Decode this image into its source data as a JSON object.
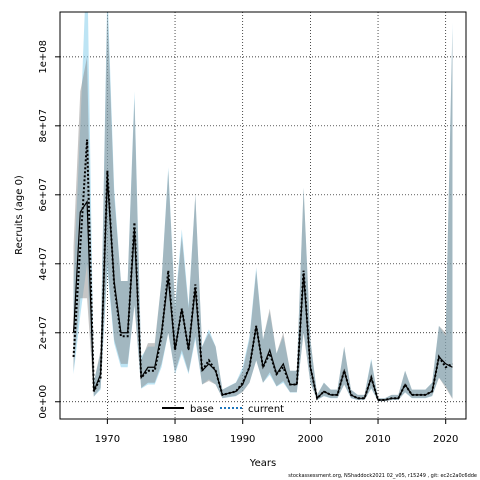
{
  "chart_data": {
    "type": "line",
    "xlabel": "Years",
    "ylabel": "Recruits (age 0)",
    "xlim": [
      1963,
      2023
    ],
    "ylim": [
      -5000000,
      113000000
    ],
    "x_ticks": [
      1970,
      1980,
      1990,
      2000,
      2010,
      2020
    ],
    "x_tick_labels": [
      "1970",
      "1980",
      "1990",
      "2000",
      "2010",
      "2020"
    ],
    "y_ticks": [
      0,
      20000000,
      40000000,
      60000000,
      80000000,
      100000000
    ],
    "y_tick_labels": [
      "0e+00",
      "2e+07",
      "4e+07",
      "6e+07",
      "8e+07",
      "1e+08"
    ],
    "grid": true,
    "legend_position": "bottom-center",
    "x": [
      1965,
      1966,
      1967,
      1968,
      1969,
      1970,
      1971,
      1972,
      1973,
      1974,
      1975,
      1976,
      1977,
      1978,
      1979,
      1980,
      1981,
      1982,
      1983,
      1984,
      1985,
      1986,
      1987,
      1988,
      1989,
      1990,
      1991,
      1992,
      1993,
      1994,
      1995,
      1996,
      1997,
      1998,
      1999,
      2000,
      2001,
      2002,
      2003,
      2004,
      2005,
      2006,
      2007,
      2008,
      2009,
      2010,
      2011,
      2012,
      2013,
      2014,
      2015,
      2016,
      2017,
      2018,
      2019,
      2020,
      2021
    ],
    "series": [
      {
        "name": "base",
        "color": "#000000",
        "dash": "solid",
        "band_color": "#808080",
        "values": [
          20000000,
          55000000,
          58000000,
          3000000,
          8000000,
          65000000,
          35000000,
          20000000,
          20000000,
          50000000,
          7000000,
          10000000,
          10000000,
          20000000,
          36000000,
          15000000,
          27000000,
          15000000,
          33000000,
          9000000,
          11000000,
          9000000,
          2000000,
          2500000,
          3000000,
          5000000,
          10000000,
          22000000,
          10000000,
          15000000,
          8000000,
          11000000,
          5000000,
          5000000,
          37000000,
          10000000,
          1000000,
          3000000,
          2000000,
          2000000,
          9000000,
          2000000,
          1000000,
          1000000,
          7000000,
          500000,
          500000,
          1000000,
          1000000,
          5000000,
          2000000,
          2000000,
          2000000,
          3000000,
          13000000,
          11000000,
          10000000
        ],
        "lower": [
          9000000,
          30000000,
          30000000,
          1500000,
          4000000,
          40000000,
          18000000,
          11000000,
          11000000,
          28000000,
          4000000,
          5500000,
          5500000,
          11000000,
          20000000,
          8500000,
          15000000,
          8500000,
          19000000,
          5000000,
          6000000,
          5000000,
          1000000,
          1400000,
          1700000,
          2800000,
          5500000,
          12000000,
          5500000,
          8500000,
          4500000,
          6000000,
          2800000,
          2800000,
          20000000,
          5500000,
          500000,
          1700000,
          1100000,
          1100000,
          5000000,
          1100000,
          500000,
          500000,
          4000000,
          200000,
          200000,
          500000,
          500000,
          2800000,
          1100000,
          1100000,
          1100000,
          1700000,
          7000000,
          4000000,
          800000
        ],
        "upper": [
          45000000,
          90000000,
          100000000,
          5500000,
          15000000,
          115000000,
          60000000,
          35000000,
          35000000,
          88000000,
          12000000,
          17000000,
          17000000,
          35000000,
          67000000,
          27000000,
          48000000,
          27000000,
          60000000,
          16000000,
          20000000,
          16000000,
          3500000,
          4500000,
          5500000,
          9000000,
          18000000,
          38000000,
          18000000,
          27000000,
          14000000,
          20000000,
          9000000,
          9000000,
          62000000,
          18000000,
          2000000,
          5500000,
          3500000,
          3500000,
          16000000,
          3500000,
          2000000,
          2000000,
          12000000,
          1000000,
          1000000,
          2000000,
          2000000,
          9000000,
          3500000,
          3500000,
          3500000,
          5500000,
          22000000,
          20000000,
          108000000
        ]
      },
      {
        "name": "current",
        "color": "#1c75bc",
        "dash": "dotted",
        "band_color": "#87ceeb",
        "values": [
          13000000,
          45000000,
          76000000,
          3000000,
          7000000,
          67000000,
          34000000,
          19000000,
          19000000,
          52000000,
          7000000,
          9000000,
          9000000,
          19000000,
          38000000,
          15000000,
          27000000,
          15000000,
          34000000,
          9000000,
          12000000,
          9000000,
          2000000,
          2500000,
          3000000,
          5500000,
          10000000,
          22000000,
          10000000,
          14000000,
          8000000,
          10000000,
          5000000,
          5000000,
          38000000,
          10000000,
          1000000,
          3000000,
          2000000,
          2000000,
          9000000,
          2000000,
          1000000,
          1000000,
          7000000,
          500000,
          500000,
          1000000,
          1000000,
          5000000,
          2000000,
          2000000,
          2000000,
          3000000,
          13000000,
          10000000,
          11000000
        ],
        "lower": [
          8000000,
          25000000,
          40000000,
          1500000,
          3500000,
          38000000,
          17000000,
          10000000,
          10000000,
          28000000,
          3800000,
          5000000,
          5000000,
          10000000,
          20000000,
          8000000,
          14000000,
          8000000,
          18000000,
          5000000,
          6500000,
          5000000,
          1000000,
          1300000,
          1600000,
          3000000,
          5500000,
          12000000,
          5500000,
          7800000,
          4400000,
          5500000,
          2700000,
          2700000,
          20000000,
          5500000,
          500000,
          1600000,
          1000000,
          1000000,
          5000000,
          1000000,
          500000,
          500000,
          3800000,
          200000,
          200000,
          500000,
          500000,
          2700000,
          1000000,
          1000000,
          1000000,
          1600000,
          7000000,
          4500000,
          1000000
        ],
        "upper": [
          35000000,
          80000000,
          130000000,
          6000000,
          14000000,
          120000000,
          62000000,
          35000000,
          35000000,
          90000000,
          13000000,
          16000000,
          16000000,
          35000000,
          68000000,
          28000000,
          50000000,
          28000000,
          60000000,
          16000000,
          21000000,
          16000000,
          3500000,
          4600000,
          5600000,
          10000000,
          19000000,
          39000000,
          18000000,
          26000000,
          14000000,
          19000000,
          9000000,
          9000000,
          62000000,
          18000000,
          2000000,
          5600000,
          3500000,
          3500000,
          16000000,
          3500000,
          2000000,
          2000000,
          12500000,
          1000000,
          1000000,
          2000000,
          2000000,
          9000000,
          3500000,
          3500000,
          3500000,
          5600000,
          22000000,
          19000000,
          110000000
        ]
      }
    ]
  },
  "footer": {
    "note": "stockassessment.org, NShaddock2021 02_v05, r15249 , git: ec2c2a0c6dde"
  }
}
